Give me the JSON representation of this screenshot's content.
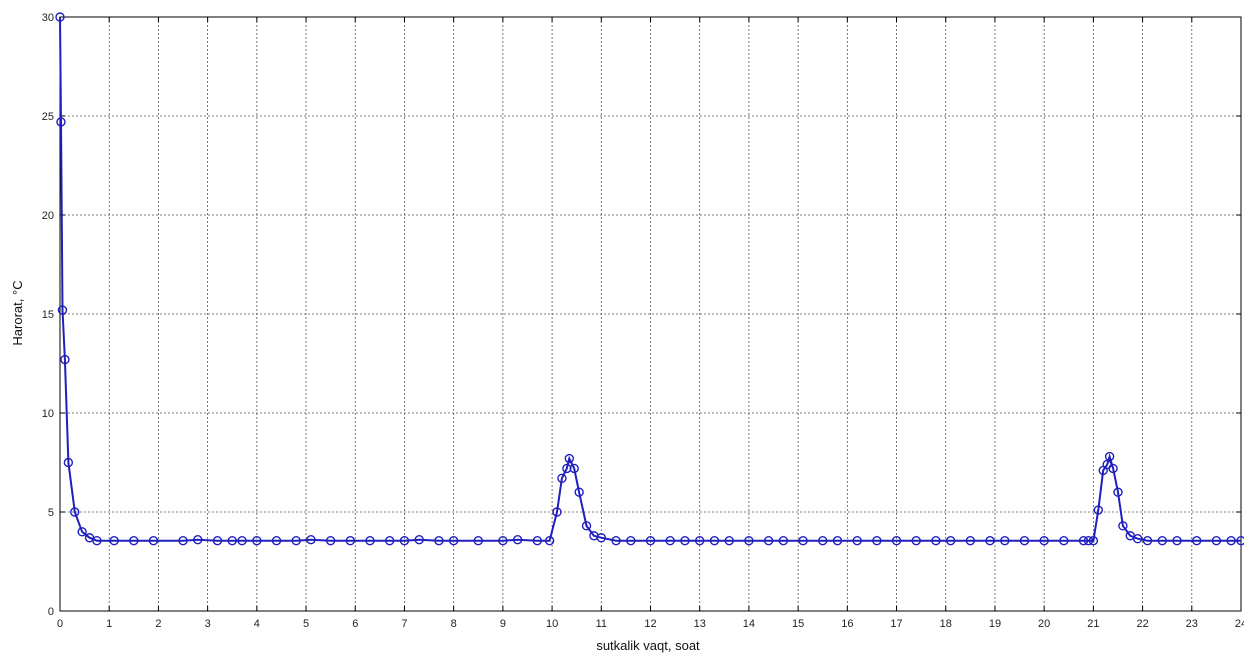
{
  "chart_data": {
    "type": "line",
    "title": "",
    "xlabel": "sutkalik vaqt, soat",
    "ylabel": "Harorat, °C",
    "xlim": [
      0,
      24
    ],
    "ylim": [
      0,
      30
    ],
    "xticks": [
      0,
      1,
      2,
      3,
      4,
      5,
      6,
      7,
      8,
      9,
      10,
      11,
      12,
      13,
      14,
      15,
      16,
      17,
      18,
      19,
      20,
      21,
      22,
      23,
      24
    ],
    "yticks": [
      0,
      5,
      10,
      15,
      20,
      25,
      30
    ],
    "grid": true,
    "line_color": "#1f1fbf",
    "marker": "circle",
    "series": [
      {
        "x": [
          0.0,
          0.02,
          0.05,
          0.1,
          0.17,
          0.3,
          0.45,
          0.6,
          0.75,
          1.1,
          1.5,
          1.9,
          2.5,
          2.8,
          3.2,
          3.5,
          3.7,
          4.0,
          4.4,
          4.8,
          5.1,
          5.5,
          5.9,
          6.3,
          6.7,
          7.0,
          7.3,
          7.7,
          8.0,
          8.5,
          9.0,
          9.3,
          9.7,
          9.95,
          10.1,
          10.2,
          10.3,
          10.35,
          10.45,
          10.55,
          10.7,
          10.85,
          11.0,
          11.3,
          11.6,
          12.0,
          12.4,
          12.7,
          13.0,
          13.3,
          13.6,
          14.0,
          14.4,
          14.7,
          15.1,
          15.5,
          15.8,
          16.2,
          16.6,
          17.0,
          17.4,
          17.8,
          18.1,
          18.5,
          18.9,
          19.2,
          19.6,
          20.0,
          20.4,
          20.8,
          20.9,
          21.0,
          21.1,
          21.2,
          21.28,
          21.33,
          21.4,
          21.5,
          21.6,
          21.75,
          21.9,
          22.1,
          22.4,
          22.7,
          23.1,
          23.5,
          23.8,
          24.0
        ],
        "values": [
          30.0,
          24.7,
          15.2,
          12.7,
          7.5,
          5.0,
          4.0,
          3.7,
          3.55,
          3.55,
          3.55,
          3.55,
          3.55,
          3.6,
          3.55,
          3.55,
          3.55,
          3.55,
          3.55,
          3.55,
          3.6,
          3.55,
          3.55,
          3.55,
          3.55,
          3.55,
          3.6,
          3.55,
          3.55,
          3.55,
          3.55,
          3.6,
          3.55,
          3.55,
          5.0,
          6.7,
          7.2,
          7.7,
          7.2,
          6.0,
          4.3,
          3.8,
          3.7,
          3.55,
          3.55,
          3.55,
          3.55,
          3.55,
          3.55,
          3.55,
          3.55,
          3.55,
          3.55,
          3.55,
          3.55,
          3.55,
          3.55,
          3.55,
          3.55,
          3.55,
          3.55,
          3.55,
          3.55,
          3.55,
          3.55,
          3.55,
          3.55,
          3.55,
          3.55,
          3.55,
          3.55,
          3.55,
          5.1,
          7.1,
          7.4,
          7.8,
          7.2,
          6.0,
          4.3,
          3.8,
          3.65,
          3.55,
          3.55,
          3.55,
          3.55,
          3.55,
          3.55,
          3.55
        ]
      }
    ]
  }
}
